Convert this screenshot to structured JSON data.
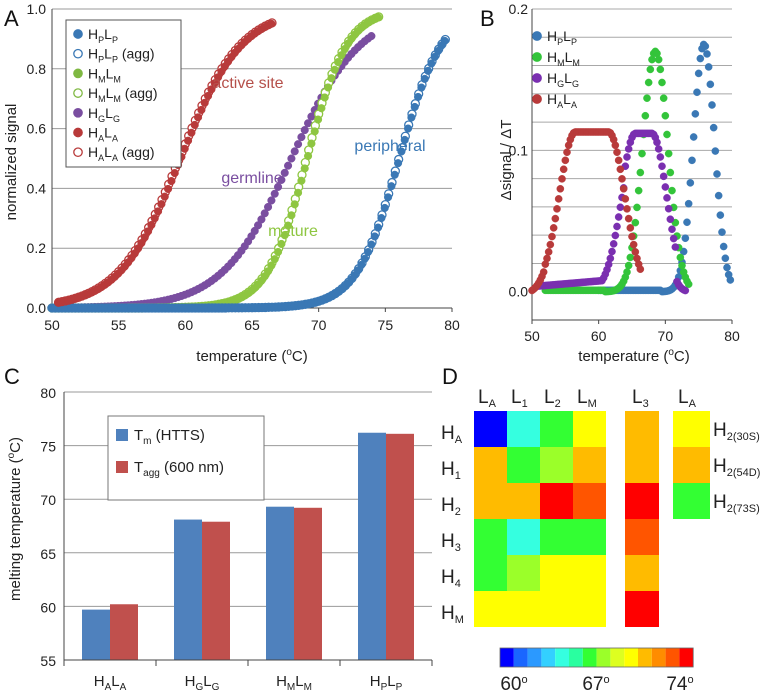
{
  "panel_labels": [
    "A",
    "B",
    "C",
    "D"
  ],
  "chart_data": [
    {
      "panel": "A",
      "type": "scatter",
      "xlabel": "temperature (oC)",
      "ylabel": "normalized signal",
      "xlim": [
        50,
        80
      ],
      "ylim": [
        0,
        1
      ],
      "xticks": [
        "50",
        "55",
        "60",
        "65",
        "70",
        "75",
        "80"
      ],
      "yticks": [
        "0.0",
        "0.2",
        "0.4",
        "0.6",
        "0.8",
        "1.0"
      ],
      "legend": [
        {
          "main": "H",
          "s1": "P",
          "mid": "L",
          "s2": "P",
          "suffix": "",
          "color": "#3a78b5",
          "filled": true
        },
        {
          "main": "H",
          "s1": "P",
          "mid": "L",
          "s2": "P",
          "suffix": " (agg)",
          "color": "#3a78b5",
          "filled": false
        },
        {
          "main": "H",
          "s1": "M",
          "mid": "L",
          "s2": "M",
          "suffix": "",
          "color": "#7fb842",
          "filled": true
        },
        {
          "main": "H",
          "s1": "M",
          "mid": "L",
          "s2": "M",
          "suffix": " (agg)",
          "color": "#7fb842",
          "filled": false
        },
        {
          "main": "H",
          "s1": "G",
          "mid": "L",
          "s2": "G",
          "suffix": "",
          "color": "#7a4ea0",
          "filled": true
        },
        {
          "main": "H",
          "s1": "A",
          "mid": "L",
          "s2": "A",
          "suffix": "",
          "color": "#b83a3a",
          "filled": true
        },
        {
          "main": "H",
          "s1": "A",
          "mid": "L",
          "s2": "A",
          "suffix": " (agg)",
          "color": "#b83a3a",
          "filled": false
        }
      ],
      "series": [
        {
          "name": "peripheral",
          "color": "#3a78b5",
          "tm": 76.1,
          "width": 1.6,
          "x_start": 50,
          "x_end": 79.6,
          "agg_offset": 0.08
        },
        {
          "name": "mature",
          "color": "#8ec641",
          "tm": 69.2,
          "width": 1.5,
          "x_start": 50,
          "x_end": 74.5,
          "agg_offset": 0.12
        },
        {
          "name": "germline",
          "color": "#7a4ea0",
          "tm": 68.0,
          "width": 2.6,
          "x_start": 50,
          "x_end": 74.2,
          "agg_offset": 0
        },
        {
          "name": "active site",
          "color": "#b83a3a",
          "tm": 59.7,
          "width": 2.3,
          "x_start": 50.5,
          "x_end": 66.6,
          "agg_offset": 0.15
        }
      ],
      "annotations": [
        {
          "text": "active site",
          "color": "#b5504a"
        },
        {
          "text": "germline",
          "color": "#7a4ea0"
        },
        {
          "text": "mature",
          "color": "#8ec641"
        },
        {
          "text": "peripheral",
          "color": "#3a78b5"
        }
      ]
    },
    {
      "panel": "B",
      "type": "scatter",
      "xlabel": "temperature (oC)",
      "ylabel": "Δsignal / ΔT",
      "xlim": [
        50,
        80
      ],
      "ylim": [
        -0.02,
        0.2
      ],
      "xticks": [
        "50",
        "60",
        "70",
        "80"
      ],
      "yticks": [
        "0.0",
        "0.1",
        "0.2"
      ],
      "legend": [
        {
          "main": "H",
          "s1": "P",
          "mid": "L",
          "s2": "P",
          "color": "#3a78b5"
        },
        {
          "main": "H",
          "s1": "M",
          "mid": "L",
          "s2": "M",
          "color": "#33c43a"
        },
        {
          "main": "H",
          "s1": "G",
          "mid": "L",
          "s2": "G",
          "color": "#7a2fb0"
        },
        {
          "main": "H",
          "s1": "A",
          "mid": "L",
          "s2": "A",
          "color": "#b83a3a"
        }
      ],
      "series": [
        {
          "name": "HPLP",
          "color": "#3a78b5",
          "peak_x": 75.8,
          "peak_y": 0.175,
          "sigma": 1.6,
          "x_start": 60,
          "x_end": 79.8
        },
        {
          "name": "HMLM",
          "color": "#33c43a",
          "peak_x": 68.5,
          "peak_y": 0.17,
          "sigma": 1.9,
          "x_start": 52,
          "x_end": 73.6
        },
        {
          "name": "HGLG",
          "color": "#7a2fb0",
          "peak_x": 67.5,
          "peak_y": 0.112,
          "sigma": 2.2,
          "x_start": 51,
          "x_end": 73.2
        },
        {
          "name": "HALA",
          "color": "#b83a3a",
          "peak_x": 58.5,
          "peak_y": 0.113,
          "sigma": 2.4,
          "x_start": 50,
          "x_end": 66.3
        }
      ]
    },
    {
      "panel": "C",
      "type": "bar",
      "ylabel": "melting temperature (oC)",
      "ylim": [
        55,
        80
      ],
      "yticks": [
        "55",
        "60",
        "65",
        "70",
        "75",
        "80"
      ],
      "categories": [
        {
          "main": "H",
          "s1": "A",
          "mid": "L",
          "s2": "A"
        },
        {
          "main": "H",
          "s1": "G",
          "mid": "L",
          "s2": "G"
        },
        {
          "main": "H",
          "s1": "M",
          "mid": "L",
          "s2": "M"
        },
        {
          "main": "H",
          "s1": "P",
          "mid": "L",
          "s2": "P"
        }
      ],
      "series": [
        {
          "name": "Tm (HTTS)",
          "main": "T",
          "sub": "m",
          "rest": " (HTTS)",
          "color": "#4f81bd",
          "values": [
            59.7,
            68.1,
            69.3,
            76.2
          ]
        },
        {
          "name": "Tagg (600 nm)",
          "main": "T",
          "sub": "agg",
          "rest": " (600 nm)",
          "color": "#c0504d",
          "values": [
            60.2,
            67.9,
            69.2,
            76.1
          ]
        }
      ]
    },
    {
      "panel": "D",
      "type": "heatmap",
      "palette": [
        "#0000ff",
        "#1a66ff",
        "#2b99ff",
        "#33d0ff",
        "#35ffe0",
        "#29ffa0",
        "#33ff33",
        "#9bff29",
        "#ddff20",
        "#ffff00",
        "#ffbb00",
        "#ff8c00",
        "#ff5500",
        "#ff0000"
      ],
      "colorbar_labels": [
        "60o",
        "67o",
        "74o"
      ],
      "main_columns": [
        {
          "main": "L",
          "sub": "A"
        },
        {
          "main": "L",
          "sub": "1"
        },
        {
          "main": "L",
          "sub": "2"
        },
        {
          "main": "L",
          "sub": "M"
        }
      ],
      "l3_column": {
        "main": "L",
        "sub": "3"
      },
      "la_column": {
        "main": "L",
        "sub": "A"
      },
      "rows": [
        {
          "main": "H",
          "sub": "A",
          "cells": [
            0,
            4,
            6,
            9
          ],
          "l3": 10
        },
        {
          "main": "H",
          "sub": "1",
          "cells": [
            10,
            6,
            7,
            10
          ],
          "l3": 10
        },
        {
          "main": "H",
          "sub": "2",
          "cells": [
            10,
            10,
            13,
            12
          ],
          "l3": 13
        },
        {
          "main": "H",
          "sub": "3",
          "cells": [
            6,
            4,
            6,
            6
          ],
          "l3": 12
        },
        {
          "main": "H",
          "sub": "4",
          "cells": [
            6,
            7,
            9,
            9
          ],
          "l3": 10
        },
        {
          "main": "H",
          "sub": "M",
          "cells": [
            9,
            9,
            9,
            9
          ],
          "l3": 13
        }
      ],
      "side_rows": [
        {
          "main": "H",
          "sub": "2(30S)",
          "cell": 9
        },
        {
          "main": "H",
          "sub": "2(54D)",
          "cell": 10
        },
        {
          "main": "H",
          "sub": "2(73S)",
          "cell": 6
        }
      ]
    }
  ]
}
